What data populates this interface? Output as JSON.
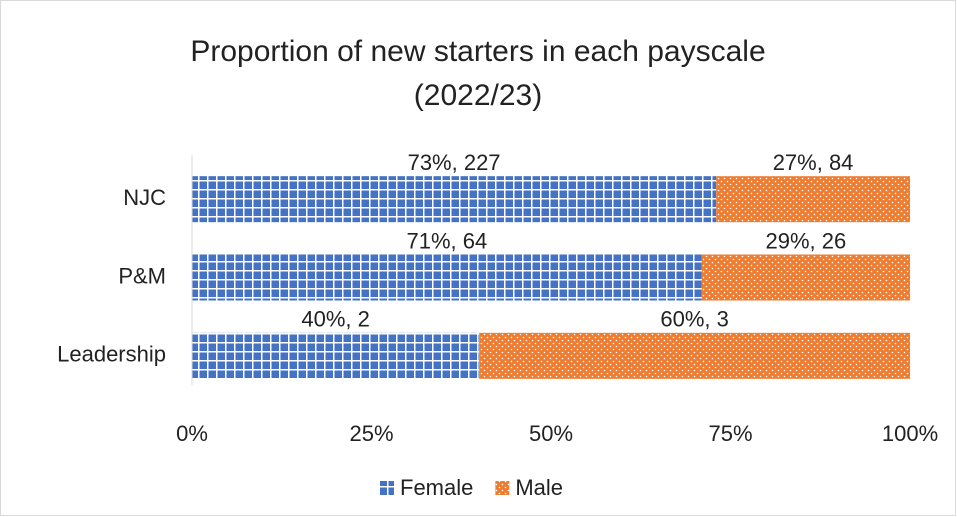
{
  "chart_data": {
    "type": "stacked-bar-horizontal",
    "title": "Proportion of new starters in each payscale (2022/23)",
    "categories": [
      "NJC",
      "P&M",
      "Leadership"
    ],
    "series": [
      {
        "name": "Female",
        "color": "#4472c4",
        "values": [
          73,
          71,
          40
        ],
        "value_labels": [
          "73%, 227",
          "71%, 64",
          "40%, 2"
        ]
      },
      {
        "name": "Male",
        "color": "#ed7d31",
        "values": [
          27,
          29,
          60
        ],
        "value_labels": [
          "27%, 84",
          "29%, 26",
          "60%, 3"
        ]
      }
    ],
    "xlim": [
      0,
      100
    ],
    "xticks": [
      {
        "value": 0,
        "label": "0%"
      },
      {
        "value": 25,
        "label": "25%"
      },
      {
        "value": 50,
        "label": "50%"
      },
      {
        "value": 75,
        "label": "75%"
      },
      {
        "value": 100,
        "label": "100%"
      }
    ],
    "grid": false,
    "legend": "bottom"
  }
}
